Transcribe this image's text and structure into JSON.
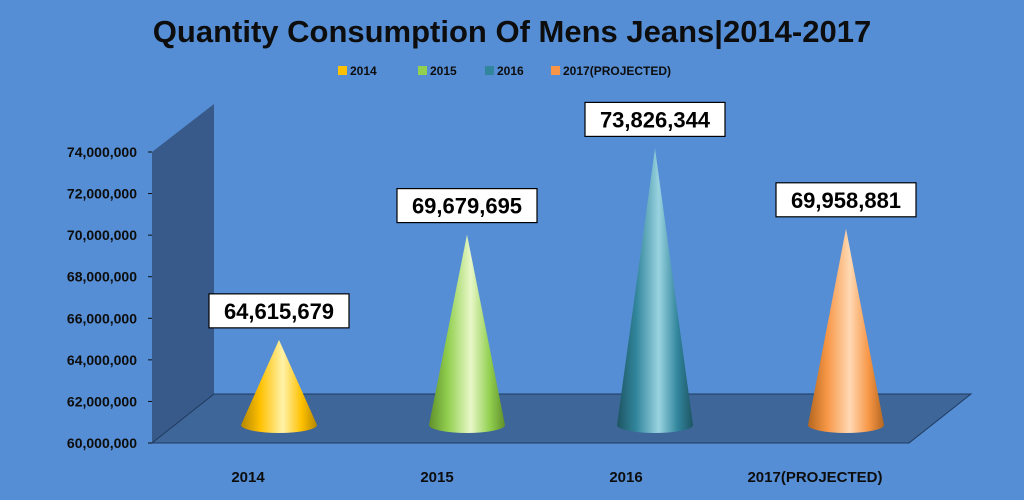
{
  "chart_data": {
    "type": "bar",
    "shape": "cone-3d",
    "title": "Quantity Consumption Of Mens Jeans|2014-2017",
    "categories": [
      "2014",
      "2015",
      "2016",
      "2017(PROJECTED)"
    ],
    "values": [
      64615679,
      69679695,
      73826344,
      69958881
    ],
    "value_labels": [
      "64,615,679",
      "69,679,695",
      "73,826,344",
      "69,958,881"
    ],
    "ylim": [
      60000000,
      74000000
    ],
    "y_ticks": [
      "60,000,000",
      "62,000,000",
      "64,000,000",
      "66,000,000",
      "68,000,000",
      "70,000,000",
      "72,000,000",
      "74,000,000"
    ],
    "xlabel": "",
    "ylabel": "",
    "grid": false,
    "legend": {
      "position": "top",
      "entries": [
        "2014",
        "2015",
        "2016",
        "2017(PROJECTED)"
      ]
    },
    "colors": [
      "#ffc000",
      "#92d050",
      "#31859c",
      "#f79646"
    ],
    "background": "#558ed5",
    "wall_color": "#375a8a",
    "floor_color": "#3e6699"
  }
}
